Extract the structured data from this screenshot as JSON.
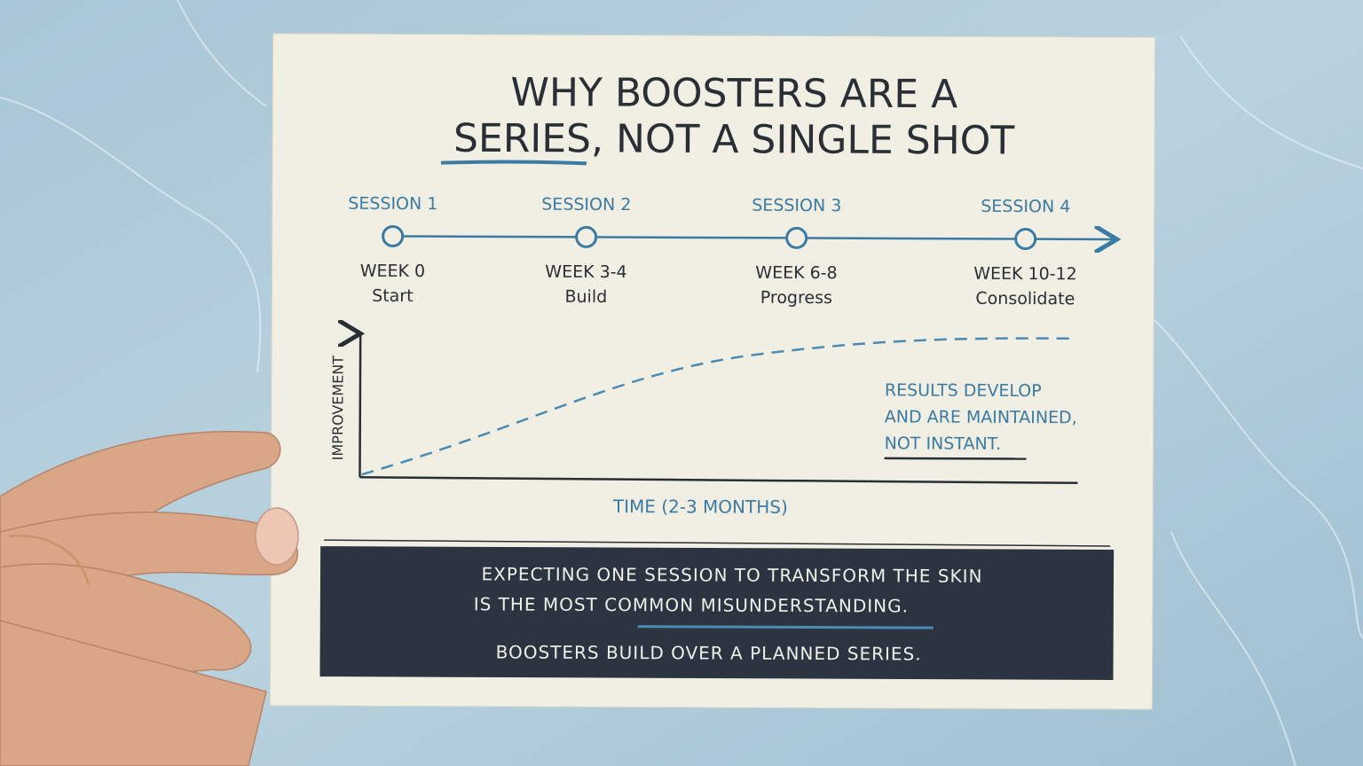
{
  "title": {
    "line1": "WHY BOOSTERS ARE A",
    "line2": "SERIES, NOT A SINGLE SHOT"
  },
  "timeline": {
    "sessions": [
      {
        "label": "SESSION 1",
        "week": "WEEK 0",
        "phase": "Start"
      },
      {
        "label": "SESSION 2",
        "week": "WEEK 3-4",
        "phase": "Build"
      },
      {
        "label": "SESSION 3",
        "week": "WEEK 6-8",
        "phase": "Progress"
      },
      {
        "label": "SESSION 4",
        "week": "WEEK 10-12",
        "phase": "Consolidate"
      }
    ]
  },
  "graph": {
    "y_label": "IMPROVEMENT",
    "x_label": "TIME (2-3 MONTHS)",
    "note": [
      "RESULTS DEVELOP",
      "AND ARE MAINTAINED,",
      "NOT INSTANT."
    ]
  },
  "banner": {
    "lines": [
      "EXPECTING ONE SESSION TO TRANSFORM THE SKIN",
      "IS THE MOST COMMON MISUNDERSTANDING."
    ],
    "tagline": "BOOSTERS BUILD OVER A PLANNED SERIES."
  }
}
